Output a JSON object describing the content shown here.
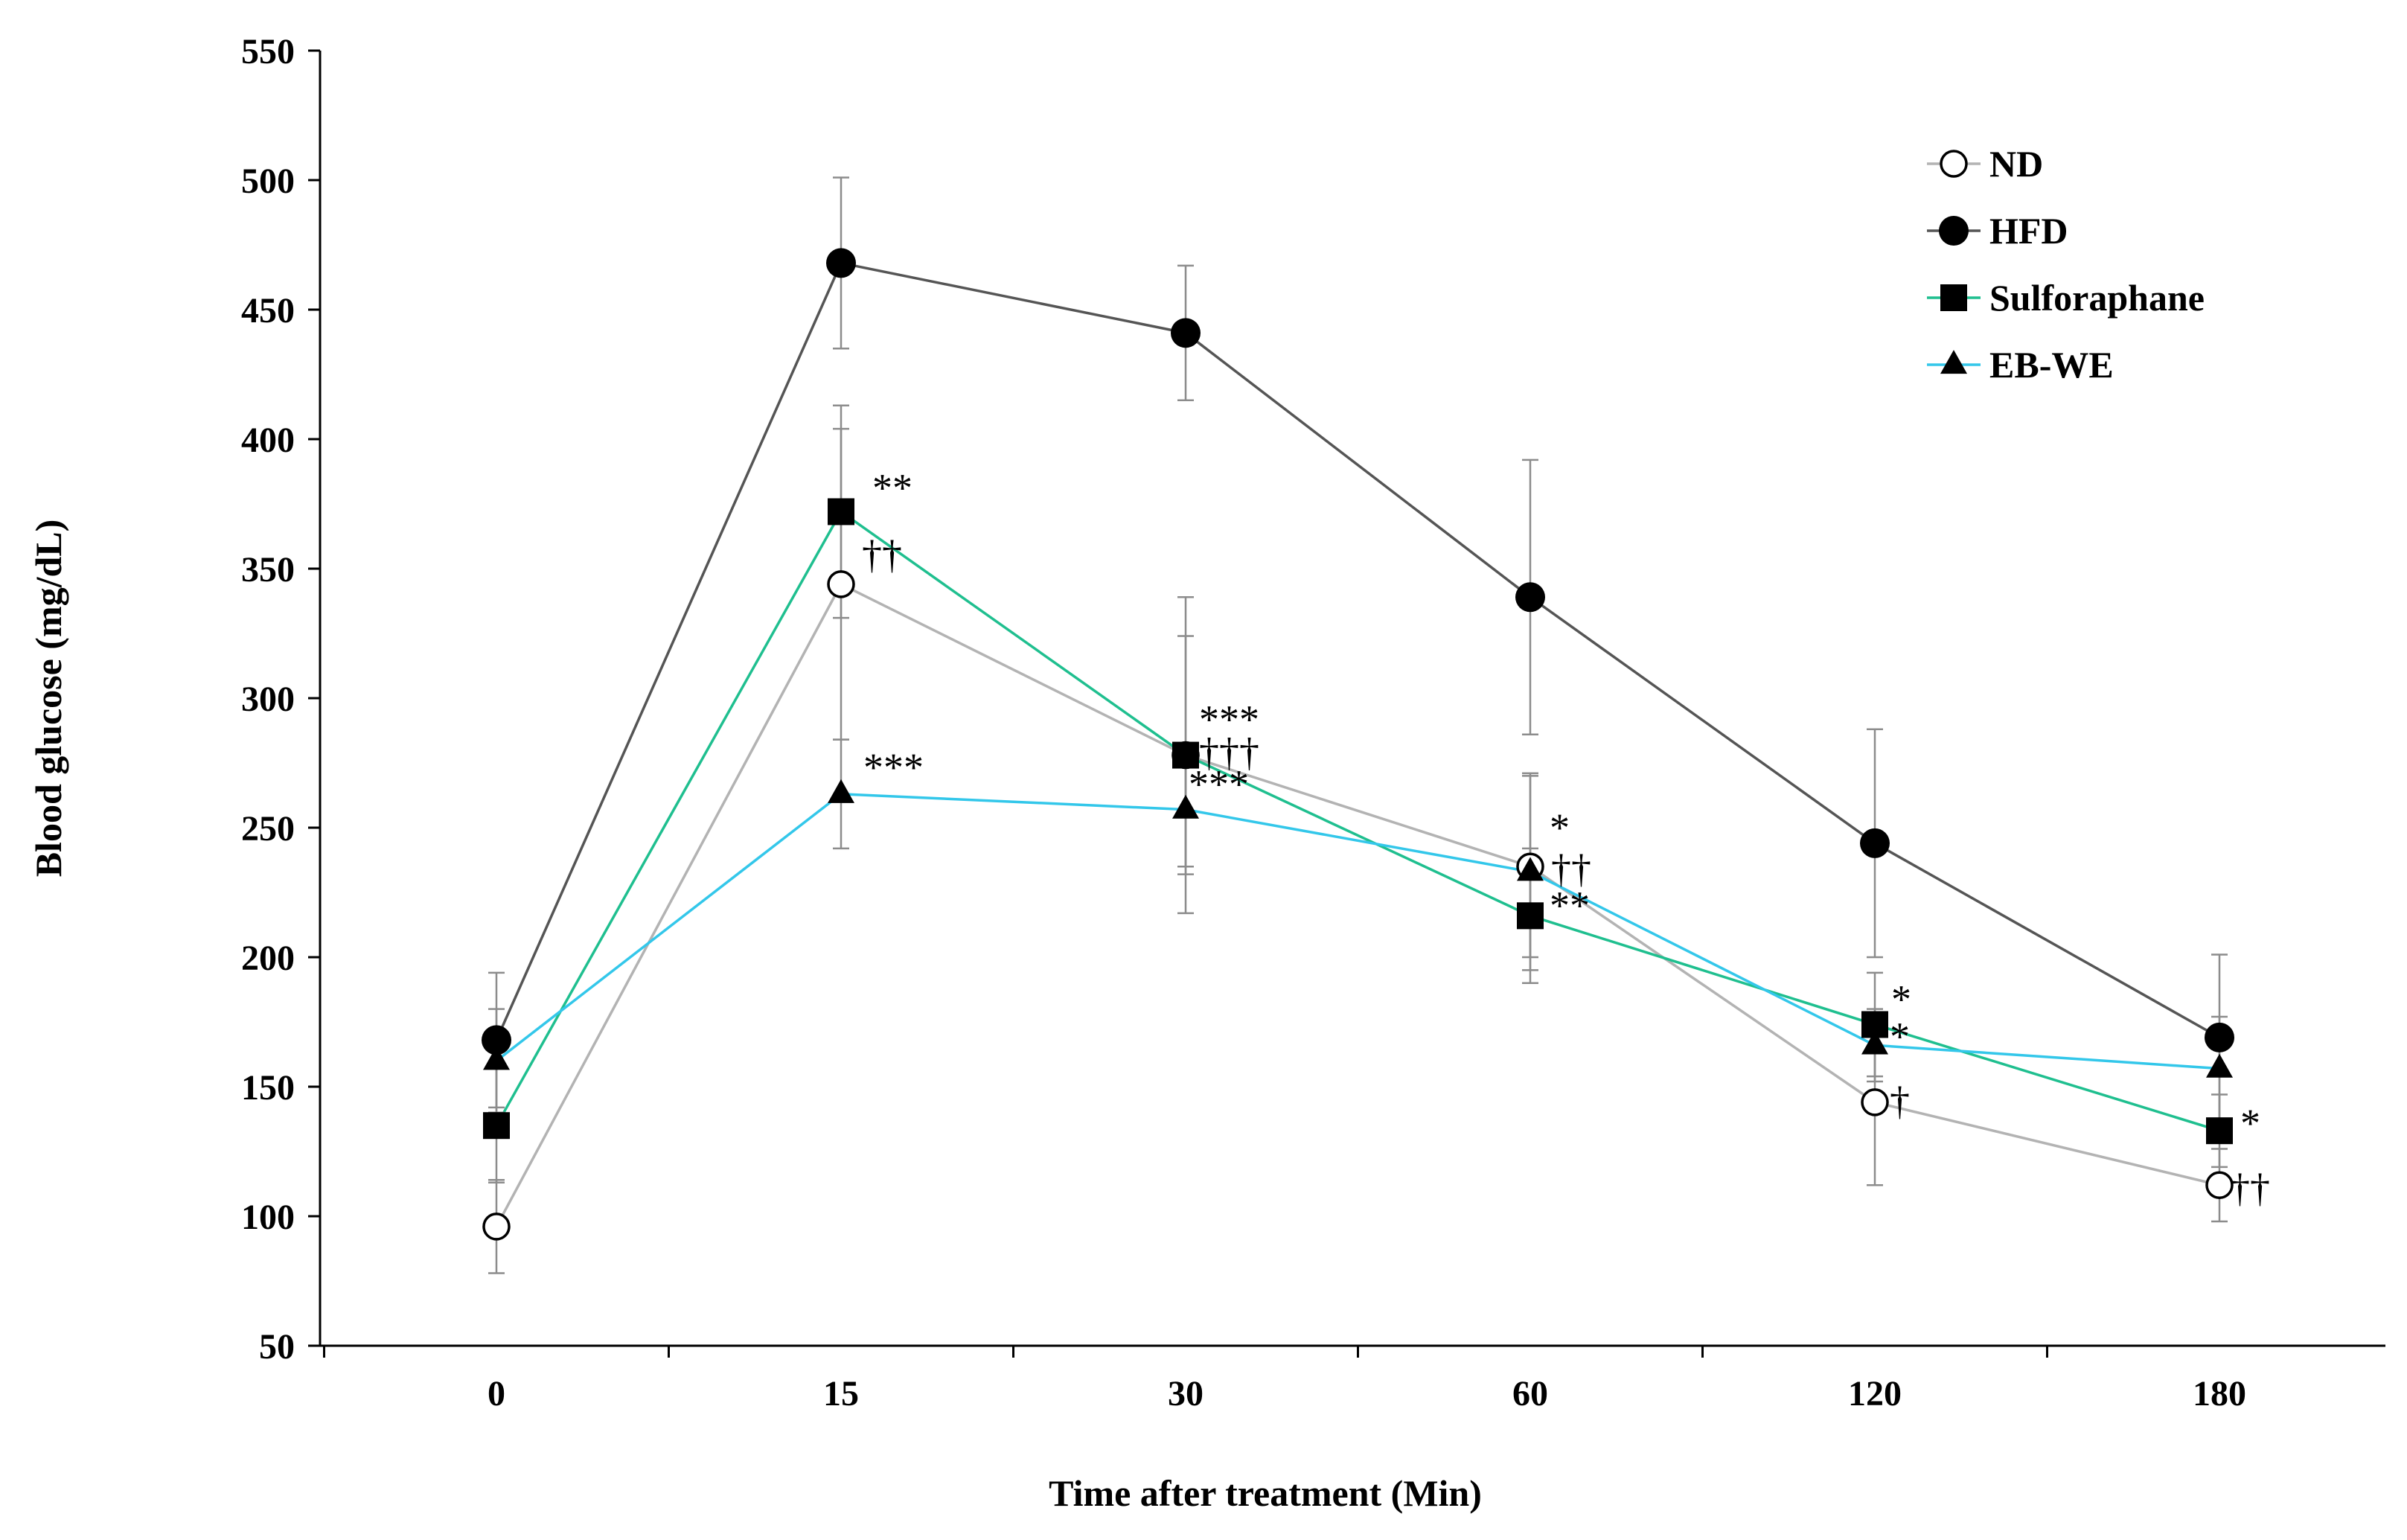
{
  "chart_data": {
    "type": "line",
    "title": "",
    "xlabel": "Time after treatment (Min)",
    "ylabel": "Blood glucose (mg/dL)",
    "categories": [
      "0",
      "15",
      "30",
      "60",
      "120",
      "180"
    ],
    "ylim": [
      50,
      550
    ],
    "yticks": [
      50,
      100,
      150,
      200,
      250,
      300,
      350,
      400,
      450,
      500,
      550
    ],
    "grid": false,
    "legend_position": "top-right",
    "series": [
      {
        "name": "ND",
        "marker": "open-circle",
        "color": "#b3b3b3",
        "values": [
          96,
          344,
          278,
          235,
          144,
          112
        ],
        "errors": [
          18,
          60,
          46,
          35,
          32,
          14
        ]
      },
      {
        "name": "HFD",
        "marker": "filled-circle",
        "color": "#555555",
        "values": [
          168,
          468,
          441,
          339,
          244,
          169
        ],
        "errors": [
          26,
          33,
          26,
          53,
          44,
          32
        ]
      },
      {
        "name": "Sulforaphane",
        "marker": "filled-square",
        "color": "#1fbf8f",
        "values": [
          135,
          372,
          278,
          216,
          174,
          133
        ],
        "errors": [
          22,
          41,
          61,
          26,
          20,
          14
        ]
      },
      {
        "name": "EB-WE",
        "marker": "filled-triangle",
        "color": "#33c7ea",
        "values": [
          160,
          263,
          257,
          233,
          166,
          157
        ],
        "errors": [
          20,
          21,
          22,
          38,
          14,
          20
        ]
      }
    ],
    "annotations": [
      {
        "x": "15",
        "y": 372,
        "text": "**"
      },
      {
        "x": "15",
        "y": 344,
        "text": "††"
      },
      {
        "x": "15",
        "y": 263,
        "text": "***"
      },
      {
        "x": "30",
        "y": 278,
        "text": "***"
      },
      {
        "x": "30",
        "y": 278,
        "text": "†††"
      },
      {
        "x": "30",
        "y": 257,
        "text": "***"
      },
      {
        "x": "60",
        "y": 235,
        "text": "*"
      },
      {
        "x": "60",
        "y": 233,
        "text": "††"
      },
      {
        "x": "60",
        "y": 216,
        "text": "**"
      },
      {
        "x": "120",
        "y": 174,
        "text": "*"
      },
      {
        "x": "120",
        "y": 166,
        "text": "*"
      },
      {
        "x": "120",
        "y": 144,
        "text": "†"
      },
      {
        "x": "180",
        "y": 133,
        "text": "*"
      },
      {
        "x": "180",
        "y": 112,
        "text": "††"
      }
    ]
  }
}
